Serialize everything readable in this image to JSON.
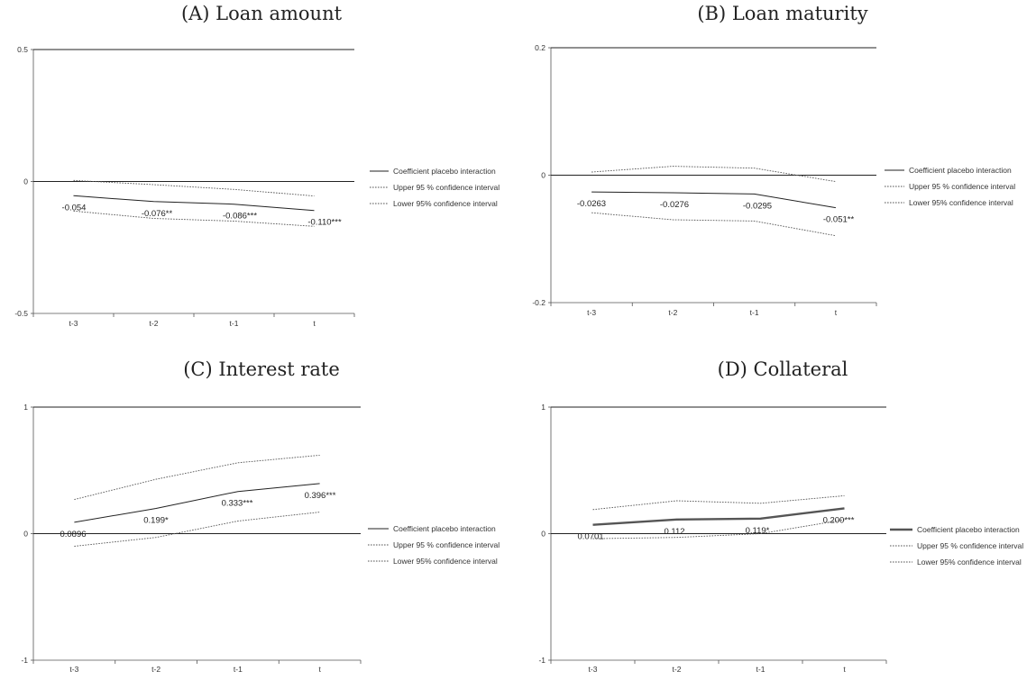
{
  "chart_data": [
    {
      "panel_id": "a",
      "type": "line",
      "title": "(A) Loan amount",
      "xlabel": "",
      "ylabel": "",
      "categories": [
        "t-3",
        "t-2",
        "t-1",
        "t"
      ],
      "ylim": [
        -0.5,
        0.5
      ],
      "yticks": [
        "0.5",
        "0",
        "-0.5"
      ],
      "legend_position": "right",
      "series": [
        {
          "name": "Coefficient placebo interaction",
          "style": "solid",
          "values": [
            -0.054,
            -0.076,
            -0.086,
            -0.11
          ]
        },
        {
          "name": "Upper 95 % confidence interval",
          "style": "dotted",
          "values": [
            0.004,
            -0.012,
            -0.03,
            -0.055
          ]
        },
        {
          "name": "Lower 95% confidence interval",
          "style": "dotted",
          "values": [
            -0.112,
            -0.14,
            -0.15,
            -0.17
          ]
        }
      ],
      "data_labels": [
        "-0.054",
        "-0.076**",
        "-0.086***",
        "-0.110***"
      ]
    },
    {
      "panel_id": "b",
      "type": "line",
      "title": "(B) Loan maturity",
      "xlabel": "",
      "ylabel": "",
      "categories": [
        "t-3",
        "t-2",
        "t-1",
        "t"
      ],
      "ylim": [
        -0.2,
        0.2
      ],
      "yticks": [
        "0.2",
        "0",
        "-0.2"
      ],
      "legend_position": "right",
      "series": [
        {
          "name": "Coefficient placebo interaction",
          "style": "solid",
          "values": [
            -0.0263,
            -0.0276,
            -0.0295,
            -0.051
          ]
        },
        {
          "name": "Upper 95 % confidence interval",
          "style": "dotted",
          "values": [
            0.005,
            0.014,
            0.011,
            -0.01
          ]
        },
        {
          "name": "Lower 95% confidence interval",
          "style": "dotted",
          "values": [
            -0.059,
            -0.07,
            -0.072,
            -0.095
          ]
        }
      ],
      "data_labels": [
        "-0.0263",
        "-0.0276",
        "-0.0295",
        "-0.051**"
      ]
    },
    {
      "panel_id": "c",
      "type": "line",
      "title": "(C) Interest rate",
      "xlabel": "",
      "ylabel": "",
      "categories": [
        "t-3",
        "t-2",
        "t-1",
        "t"
      ],
      "ylim": [
        -1,
        1
      ],
      "yticks": [
        "1",
        "0",
        "-1"
      ],
      "legend_position": "right",
      "series": [
        {
          "name": "Coefficient placebo interaction",
          "style": "solid",
          "values": [
            0.0896,
            0.199,
            0.333,
            0.396
          ]
        },
        {
          "name": "Upper 95 % confidence interval",
          "style": "dotted",
          "values": [
            0.27,
            0.43,
            0.56,
            0.62
          ]
        },
        {
          "name": "Lower 95% confidence interval",
          "style": "dotted",
          "values": [
            -0.1,
            -0.03,
            0.1,
            0.17
          ]
        }
      ],
      "data_labels": [
        "0.0896",
        "0.199*",
        "0.333***",
        "0.396***"
      ]
    },
    {
      "panel_id": "d",
      "type": "line",
      "title": "(D) Collateral",
      "xlabel": "",
      "ylabel": "",
      "categories": [
        "t-3",
        "t-2",
        "t-1",
        "t"
      ],
      "ylim": [
        -1,
        1
      ],
      "yticks": [
        "1",
        "0",
        "-1"
      ],
      "legend_position": "right",
      "series": [
        {
          "name": "Coefficient placebo interaction",
          "style": "thick",
          "values": [
            0.0701,
            0.112,
            0.119,
            0.2
          ]
        },
        {
          "name": "Upper 95 % confidence interval",
          "style": "dotted",
          "values": [
            0.19,
            0.26,
            0.24,
            0.3
          ]
        },
        {
          "name": "Lower 95% confidence interval",
          "style": "dotted",
          "values": [
            -0.04,
            -0.03,
            0.0,
            0.11
          ]
        }
      ],
      "data_labels": [
        "0.0701",
        "0.112",
        "0.119*",
        "0.200***"
      ]
    }
  ]
}
